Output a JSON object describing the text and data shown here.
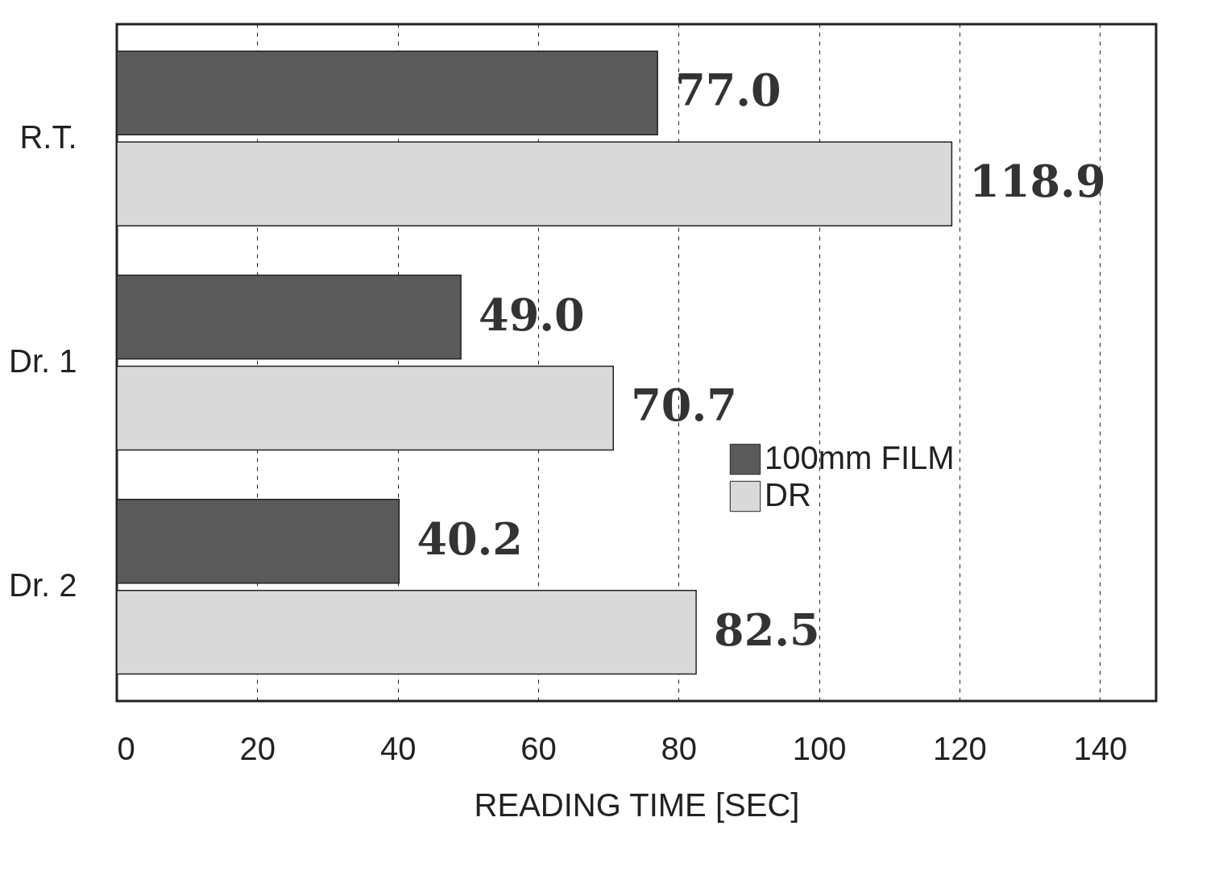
{
  "chart_data": {
    "type": "bar",
    "orientation": "horizontal",
    "categories": [
      "R.T.",
      "Dr. 1",
      "Dr. 2"
    ],
    "series": [
      {
        "name": "100mm FILM",
        "color": "#5a5a5a",
        "values": [
          77.0,
          49.0,
          40.2
        ],
        "value_labels": [
          "77.0",
          "49.0",
          "40.2"
        ]
      },
      {
        "name": "DR",
        "color": "#d9d9d9",
        "values": [
          118.9,
          70.7,
          82.5
        ],
        "value_labels": [
          "118.9",
          "70.7",
          "82.5"
        ]
      }
    ],
    "xlabel": "READING TIME  [SEC]",
    "xlim": [
      0,
      148
    ],
    "xticks": [
      0,
      20,
      40,
      60,
      80,
      100,
      120,
      140
    ],
    "grid": "x",
    "legend": "right"
  }
}
